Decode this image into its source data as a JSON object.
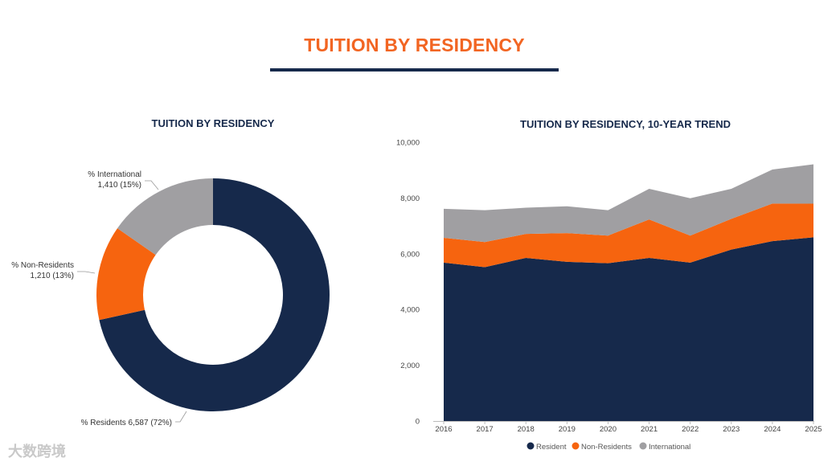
{
  "page": {
    "title": "TUITION BY RESIDENCY",
    "watermark": "大数跨境"
  },
  "colors": {
    "resident": "#16294b",
    "non_residents": "#f6640f",
    "international": "#a09fa2",
    "title": "#f26522"
  },
  "chart_data": [
    {
      "type": "pie",
      "subtype": "donut",
      "title": "TUITION BY RESIDENCY",
      "slices": [
        {
          "name": "% Residents",
          "label": "% Residents 6,587 (72%)",
          "value": 6587,
          "percent": 72
        },
        {
          "name": "% Non-Residents",
          "label_line1": "% Non-Residents",
          "label_line2": "1,210 (13%)",
          "value": 1210,
          "percent": 13
        },
        {
          "name": "% International",
          "label_line1": "% International",
          "label_line2": "1,410 (15%)",
          "value": 1410,
          "percent": 15
        }
      ]
    },
    {
      "type": "area",
      "stacked": true,
      "title": "TUITION BY RESIDENCY, 10-YEAR TREND",
      "x": [
        "2016",
        "2017",
        "2018",
        "2019",
        "2020",
        "2021",
        "2022",
        "2023",
        "2024",
        "2025"
      ],
      "series": [
        {
          "name": "Resident",
          "values": [
            5680,
            5520,
            5850,
            5710,
            5660,
            5850,
            5680,
            6150,
            6450,
            6587
          ]
        },
        {
          "name": "Non-Residents",
          "values": [
            890,
            900,
            860,
            1030,
            990,
            1380,
            970,
            1100,
            1350,
            1210
          ]
        },
        {
          "name": "International",
          "values": [
            1040,
            1140,
            940,
            960,
            910,
            1100,
            1340,
            1080,
            1220,
            1410
          ]
        }
      ],
      "ylim": [
        0,
        10000
      ],
      "yticks": [
        "0",
        "2,000",
        "4,000",
        "6,000",
        "8,000",
        "10,000"
      ],
      "legend": [
        "Resident",
        "Non-Residents",
        "International"
      ],
      "legend_position": "bottom"
    }
  ]
}
